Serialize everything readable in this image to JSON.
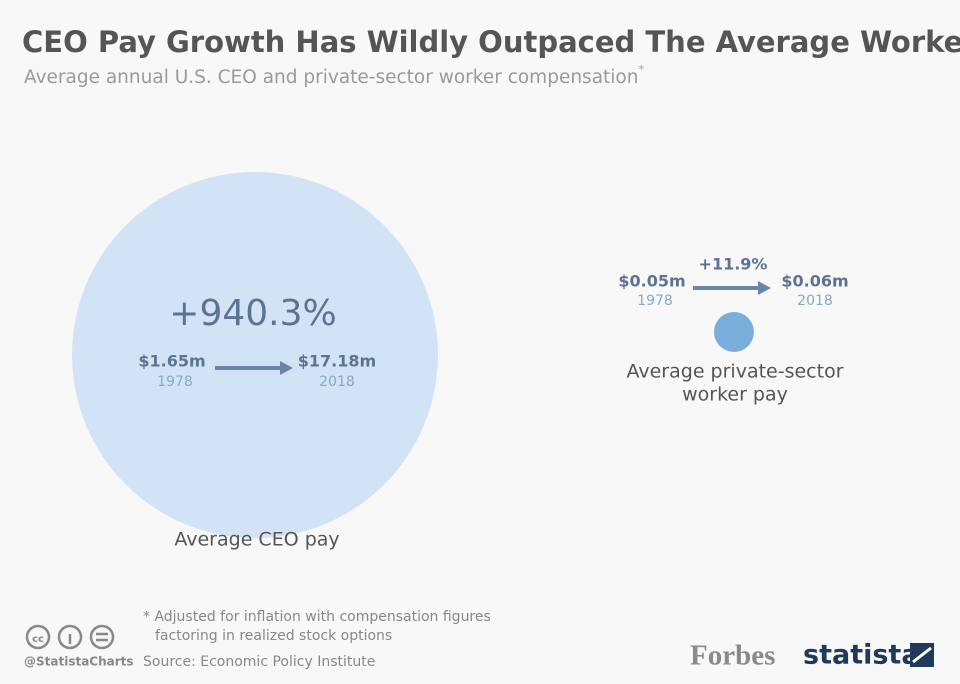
{
  "header": {
    "title": "CEO Pay Growth Has Wildly Outpaced The Average Worker",
    "subtitle": "Average annual U.S. CEO and private-sector worker compensation",
    "subtitle_mark": "*"
  },
  "groups": [
    {
      "change": "+940.3%",
      "from_value": "$1.65m",
      "from_year": "1978",
      "to_value": "$17.18m",
      "to_year": "2018",
      "label": [
        "Average CEO pay"
      ]
    },
    {
      "change": "+11.9%",
      "from_value": "$0.05m",
      "from_year": "1978",
      "to_value": "$0.06m",
      "to_year": "2018",
      "label": [
        "Average private-sector",
        "worker pay"
      ]
    }
  ],
  "footer": {
    "note": [
      "* Adjusted for inflation with compensation figures",
      "factoring in realized stock options"
    ],
    "source": "Source: Economic Policy Institute",
    "handle": "@StatistaCharts",
    "partner": "Forbes",
    "brand": "statista"
  }
}
